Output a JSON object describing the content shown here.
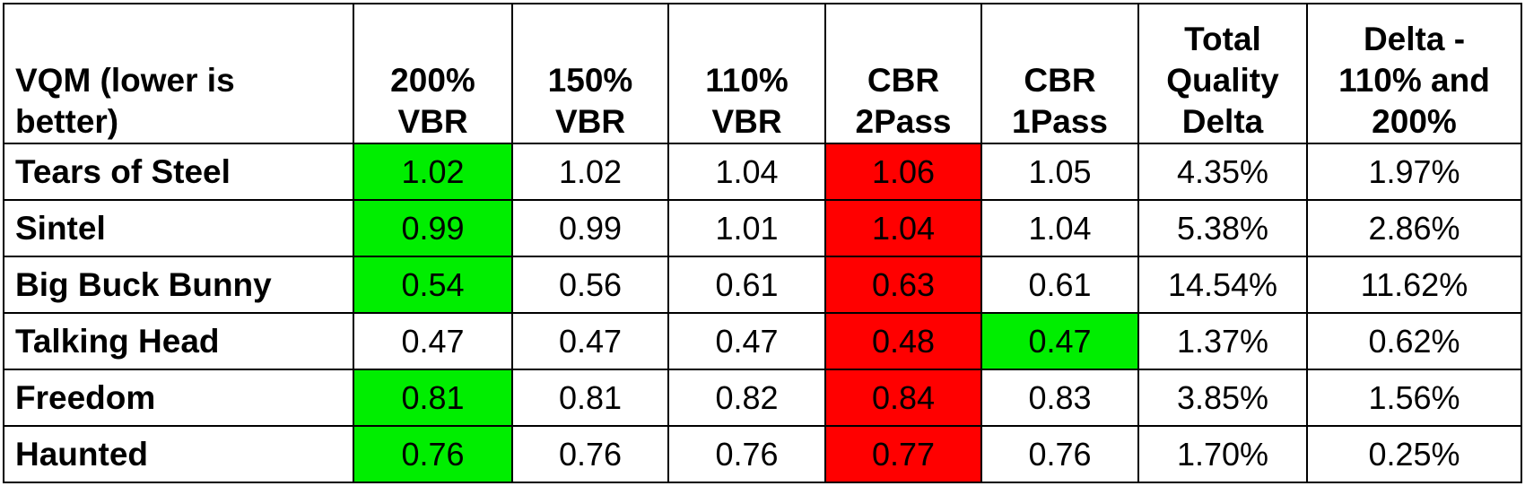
{
  "chart_data": {
    "type": "table",
    "title": "",
    "columns": [
      [
        "VQM (lower is",
        "better)"
      ],
      [
        "200%",
        "VBR"
      ],
      [
        "150%",
        "VBR"
      ],
      [
        "110%",
        "VBR"
      ],
      [
        "CBR",
        "2Pass"
      ],
      [
        "CBR",
        "1Pass"
      ],
      [
        "Total",
        "Quality",
        "Delta"
      ],
      [
        "Delta -",
        "110% and",
        "200%"
      ]
    ],
    "rows": [
      {
        "name": "Tears of Steel",
        "values": [
          "1.02",
          "1.02",
          "1.04",
          "1.06",
          "1.05",
          "4.35%",
          "1.97%"
        ],
        "highlights": [
          "best",
          "",
          "",
          "worst",
          "",
          "",
          ""
        ]
      },
      {
        "name": "Sintel",
        "values": [
          "0.99",
          "0.99",
          "1.01",
          "1.04",
          "1.04",
          "5.38%",
          "2.86%"
        ],
        "highlights": [
          "best",
          "",
          "",
          "worst",
          "",
          "",
          ""
        ]
      },
      {
        "name": "Big Buck Bunny",
        "values": [
          "0.54",
          "0.56",
          "0.61",
          "0.63",
          "0.61",
          "14.54%",
          "11.62%"
        ],
        "highlights": [
          "best",
          "",
          "",
          "worst",
          "",
          "",
          ""
        ]
      },
      {
        "name": "Talking Head",
        "values": [
          "0.47",
          "0.47",
          "0.47",
          "0.48",
          "0.47",
          "1.37%",
          "0.62%"
        ],
        "highlights": [
          "",
          "",
          "",
          "worst",
          "best",
          "",
          ""
        ]
      },
      {
        "name": "Freedom",
        "values": [
          "0.81",
          "0.81",
          "0.82",
          "0.84",
          "0.83",
          "3.85%",
          "1.56%"
        ],
        "highlights": [
          "best",
          "",
          "",
          "worst",
          "",
          "",
          ""
        ]
      },
      {
        "name": "Haunted",
        "values": [
          "0.76",
          "0.76",
          "0.76",
          "0.77",
          "0.76",
          "1.70%",
          "0.25%"
        ],
        "highlights": [
          "best",
          "",
          "",
          "worst",
          "",
          "",
          ""
        ]
      }
    ],
    "colors": {
      "best": "#00ee00",
      "worst": "#ff0000"
    }
  }
}
